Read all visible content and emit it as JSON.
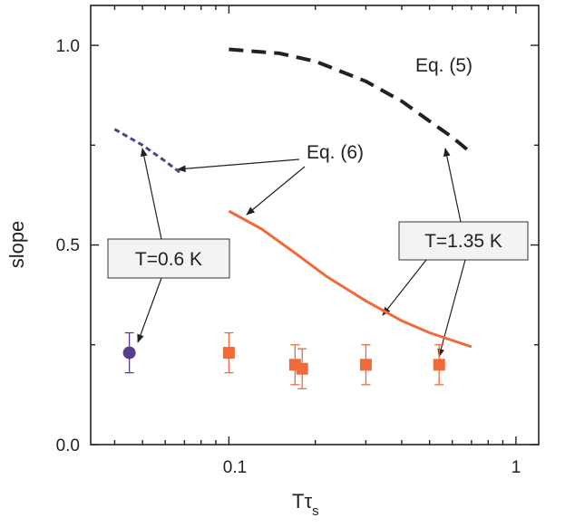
{
  "chart_data": {
    "type": "scatter",
    "x_scale": "log",
    "xlim": [
      0.033,
      1.2
    ],
    "ylim": [
      0.0,
      1.1
    ],
    "x_ticks": [
      0.1,
      1
    ],
    "x_tick_labels": [
      "0.1",
      "1"
    ],
    "y_ticks": [
      0.0,
      0.5,
      1.0
    ],
    "y_tick_labels": [
      "0.0",
      "0.5",
      "1.0"
    ],
    "xlabel": "T",
    "xlabel_tau": "τ",
    "xlabel_sub": "s",
    "ylabel": "slope",
    "grid": false,
    "colors": {
      "orange": "#f06a3a",
      "purple": "#5a3d8a",
      "dark": "#222222"
    },
    "series": [
      {
        "kind": "points",
        "marker": "circle",
        "color": "#5a3d8a",
        "points": [
          {
            "x": 0.045,
            "y": 0.23,
            "err": 0.05
          }
        ]
      },
      {
        "kind": "points",
        "marker": "square",
        "color": "#f06a3a",
        "points": [
          {
            "x": 0.1,
            "y": 0.23,
            "err": 0.05
          },
          {
            "x": 0.17,
            "y": 0.2,
            "err": 0.05
          },
          {
            "x": 0.18,
            "y": 0.19,
            "err": 0.05
          },
          {
            "x": 0.3,
            "y": 0.2,
            "err": 0.05
          },
          {
            "x": 0.54,
            "y": 0.2,
            "err": 0.05
          }
        ]
      },
      {
        "kind": "line",
        "dash": "long",
        "color": "#222222",
        "width": 4,
        "x": [
          0.1,
          0.15,
          0.2,
          0.3,
          0.4,
          0.5,
          0.6,
          0.7
        ],
        "y": [
          0.99,
          0.98,
          0.96,
          0.91,
          0.86,
          0.81,
          0.77,
          0.73
        ]
      },
      {
        "kind": "line",
        "dash": "short",
        "color": "#5a3d8a",
        "width": 3,
        "x": [
          0.04,
          0.05,
          0.06,
          0.068
        ],
        "y": [
          0.79,
          0.75,
          0.71,
          0.68
        ]
      },
      {
        "kind": "line",
        "dash": "none",
        "color": "#f06a3a",
        "width": 3,
        "x": [
          0.1,
          0.13,
          0.17,
          0.22,
          0.3,
          0.4,
          0.5,
          0.7
        ],
        "y": [
          0.585,
          0.54,
          0.48,
          0.42,
          0.36,
          0.31,
          0.28,
          0.245
        ]
      }
    ],
    "annotations": {
      "eq5": "Eq. (5)",
      "eq6": "Eq. (6)",
      "t06": "T=0.6 K",
      "t135": "T=1.35 K"
    }
  }
}
